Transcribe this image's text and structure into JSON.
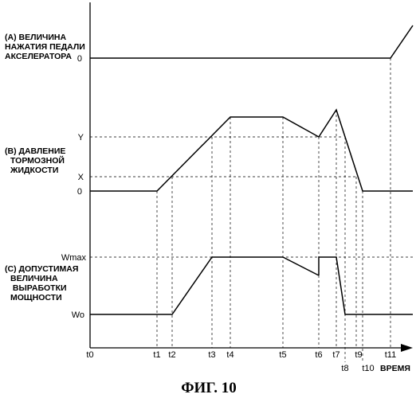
{
  "panels": {
    "a": {
      "lines": [
        "(A) ВЕЛИЧИНА",
        "НАЖАТИЯ ПЕДАЛИ",
        "АКСЕЛЕРАТОРА"
      ],
      "zero": "0"
    },
    "b": {
      "lines": [
        "(B) ДАВЛЕНИЕ",
        "ТОРМОЗНОЙ",
        "ЖИДКОСТИ"
      ],
      "y": "Y",
      "x": "X",
      "zero": "0"
    },
    "c": {
      "lines": [
        "(C) ДОПУСТИМАЯ",
        "ВЕЛИЧИНА",
        " ВЫРАБОТКИ",
        "МОЩНОСТИ"
      ],
      "wmax": "Wmax",
      "wo": "Wo"
    }
  },
  "time_axis": {
    "labels": [
      "t0",
      "t1",
      "t2",
      "t3",
      "t4",
      "t5",
      "t6",
      "t7",
      "t8",
      "t9",
      "t10",
      "t11"
    ],
    "unit": "ВРЕМЯ"
  },
  "caption": "ФИГ. 10"
}
